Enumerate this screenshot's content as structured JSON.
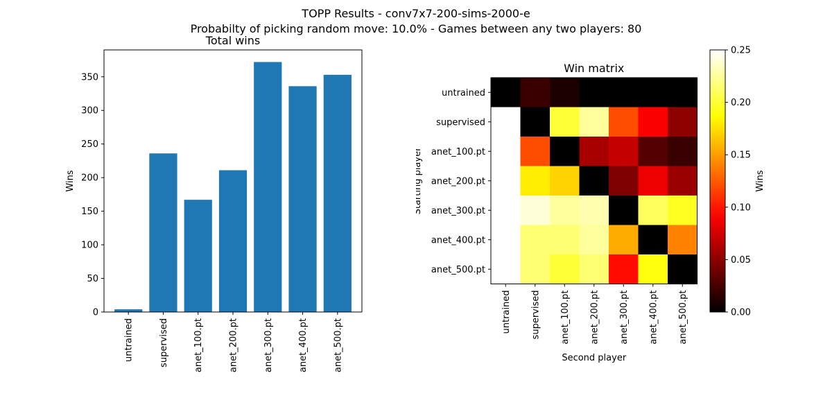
{
  "figure": {
    "title": "TOPP Results - conv7x7-200-sims-2000-e",
    "subtitle": "Probabilty of picking random move: 10.0% - Games between any two players: 80"
  },
  "chart_data": [
    {
      "type": "bar",
      "title": "Total wins",
      "xlabel": "",
      "ylabel": "Wins",
      "categories": [
        "untrained",
        "supervised",
        "anet_100.pt",
        "anet_200.pt",
        "anet_300.pt",
        "anet_400.pt",
        "anet_500.pt"
      ],
      "values": [
        4,
        236,
        167,
        211,
        372,
        336,
        353
      ],
      "ylim": [
        0,
        390
      ],
      "yticks": [
        0,
        50,
        100,
        150,
        200,
        250,
        300,
        350
      ],
      "color": "#1f77b4",
      "grid": false
    },
    {
      "type": "heatmap",
      "title": "Win matrix",
      "xlabel": "Second player",
      "ylabel": "Starting player",
      "x": [
        "untrained",
        "supervised",
        "anet_100.pt",
        "anet_200.pt",
        "anet_300.pt",
        "anet_400.pt",
        "anet_500.pt"
      ],
      "y": [
        "untrained",
        "supervised",
        "anet_100.pt",
        "anet_200.pt",
        "anet_300.pt",
        "anet_400.pt",
        "anet_500.pt"
      ],
      "values": [
        [
          0.0,
          0.02,
          0.01,
          0.0,
          0.0,
          0.0,
          0.0
        ],
        [
          0.25,
          0.0,
          0.2,
          0.225,
          0.12,
          0.09,
          0.05
        ],
        [
          0.25,
          0.12,
          0.0,
          0.06,
          0.07,
          0.03,
          0.02
        ],
        [
          0.25,
          0.18,
          0.17,
          0.0,
          0.045,
          0.085,
          0.055
        ],
        [
          0.25,
          0.24,
          0.225,
          0.23,
          0.0,
          0.21,
          0.195
        ],
        [
          0.25,
          0.215,
          0.215,
          0.225,
          0.155,
          0.0,
          0.14
        ],
        [
          0.25,
          0.215,
          0.2,
          0.215,
          0.095,
          0.19,
          0.0
        ]
      ],
      "colormap": "hot",
      "colorbar": {
        "label": "Wins",
        "range": [
          0.0,
          0.25
        ],
        "ticks": [
          "0.00",
          "0.05",
          "0.10",
          "0.15",
          "0.20",
          "0.25"
        ]
      }
    }
  ]
}
